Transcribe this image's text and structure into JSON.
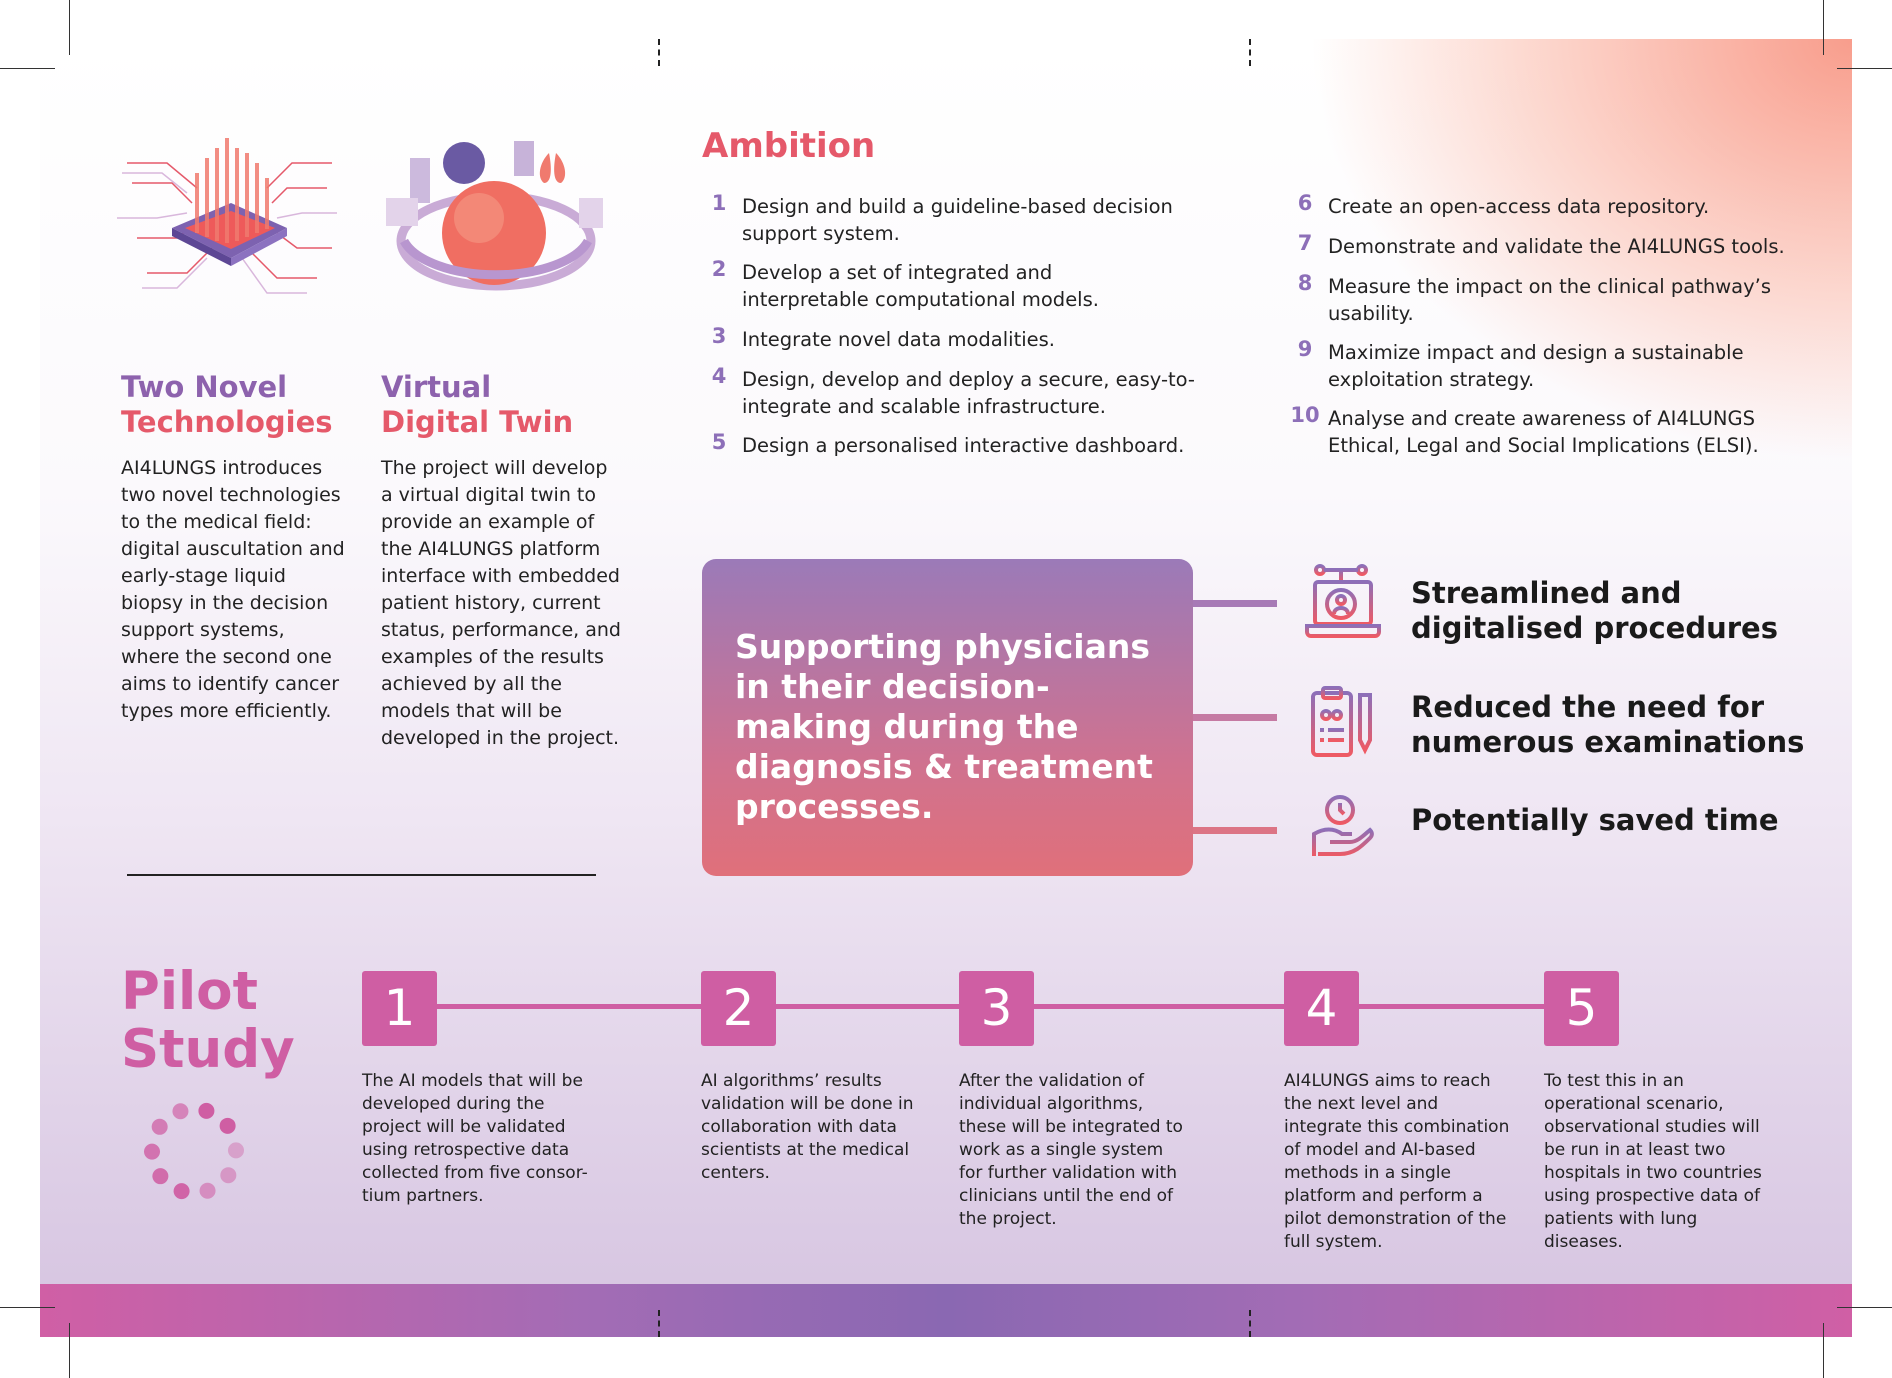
{
  "technologies": {
    "heading_line1": "Two Novel",
    "heading_line2": "Technologies",
    "body": "AI4LUNGS introduces two novel technologies to the medical field: digital auscultation and early-stage liquid biopsy in the decision support systems, where the second one aims to identify cancer types more efficiently."
  },
  "twin": {
    "heading_line1": "Virtual",
    "heading_line2": "Digital Twin",
    "body": "The project will develop a virtual digital twin to provide an example of the AI4LUNGS platform interface with embedded patient history, current status, performance, and examples of the results achieved by all the models that will be developed in the project."
  },
  "ambition": {
    "title": "Ambition",
    "items": [
      {
        "n": "1",
        "text": "Design and build a guideline-based decision support system."
      },
      {
        "n": "2",
        "text": "Develop a set of integrated and interpretable computational models."
      },
      {
        "n": "3",
        "text": "Integrate novel data modalities."
      },
      {
        "n": "4",
        "text": "Design, develop and deploy a secure, easy-to-integrate and scalable infrastructure."
      },
      {
        "n": "5",
        "text": "Design a personalised interactive dashboard."
      },
      {
        "n": "6",
        "text": "Create an open-access data repository."
      },
      {
        "n": "7",
        "text": "Demonstrate and validate the AI4LUNGS tools."
      },
      {
        "n": "8",
        "text": "Measure the impact on the clinical pathway’s usability."
      },
      {
        "n": "9",
        "text": "Maximize impact and design a sustainable exploitation strategy."
      },
      {
        "n": "10",
        "text": "Analyse and create awareness of AI4LUNGS Ethical, Legal and Social Implications (ELSI)."
      }
    ]
  },
  "callout": {
    "text": "Supporting physicians in their decision-making during the diagnosis & treatment processes."
  },
  "benefits": [
    {
      "icon": "laptop-user-icon",
      "line1": "Streamlined and",
      "line2": "digitalised procedures"
    },
    {
      "icon": "clipboard-icon",
      "line1": "Reduced the need for",
      "line2": "numerous examinations"
    },
    {
      "icon": "hand-clock-icon",
      "line1": "Potentially saved time",
      "line2": ""
    }
  ],
  "pilot": {
    "title_line1": "Pilot",
    "title_line2": "Study",
    "steps": [
      {
        "n": "1",
        "text": "The AI models that will be developed during the project will be validated using retrospective data collected from five consor-tium partners."
      },
      {
        "n": "2",
        "text": "AI algorithms’ results validation will be done in collaboration with data scientists at the medical centers."
      },
      {
        "n": "3",
        "text": "After the validation of individual algorithms, these will be integrated to work as a single system for further validation with clinicians until the end of the project."
      },
      {
        "n": "4",
        "text": "AI4LUNGS aims to reach the next level and integrate this combination of model and AI-based methods in a single platform and perform a pilot demonstration of the full system."
      },
      {
        "n": "5",
        "text": "To test this in an operational scenario, observational studies will be run in at least two hospitals in two countries using prospective data of patients with lung diseases."
      }
    ]
  },
  "colors": {
    "purple": "#8d62ad",
    "red": "#e5596a",
    "magenta": "#cf5ea3"
  }
}
